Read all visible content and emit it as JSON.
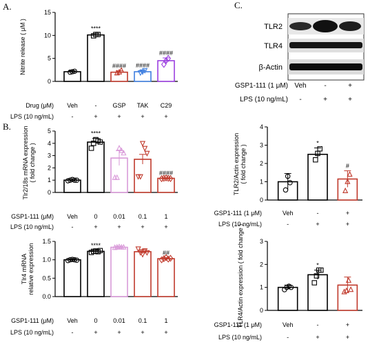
{
  "panels": [
    {
      "letter": "A."
    },
    {
      "letter": "B."
    },
    {
      "letter": "C."
    }
  ],
  "blot": {
    "bands": [
      "TLR2",
      "TLR4",
      "β-Actin"
    ],
    "rows": [
      {
        "label": "GSP1-111 (1 μM)",
        "marks": [
          "Veh",
          "-",
          "+"
        ]
      },
      {
        "label": "LPS (10 ng/mL)",
        "marks": [
          "-",
          "+",
          "+"
        ]
      }
    ]
  },
  "chart_data": [
    {
      "id": "A",
      "type": "bar",
      "ylabel": "Nitrite release ( μM )",
      "ylim": [
        0,
        15
      ],
      "yticks": [
        0,
        5,
        10,
        15
      ],
      "categories": [
        "Veh",
        "-",
        "GSP",
        "TAK",
        "C29"
      ],
      "values": [
        2.1,
        10.1,
        2.0,
        2.1,
        4.5
      ],
      "errors": [
        0.2,
        0.3,
        0.3,
        0.3,
        0.6
      ],
      "points": [
        [
          2.0,
          2.1,
          2.2
        ],
        [
          9.9,
          10.2,
          10.2
        ],
        [
          1.8,
          2.0,
          2.4
        ],
        [
          1.9,
          2.1,
          2.4
        ],
        [
          3.7,
          4.5,
          5.0
        ]
      ],
      "colors": [
        "#000000",
        "#000000",
        "#c0392b",
        "#3f7fe0",
        "#9b3fe0"
      ],
      "markers": [
        "circle",
        "square",
        "triangle",
        "triangle-down",
        "diamond"
      ],
      "annotations": [
        "",
        "****",
        "####",
        "####",
        "####"
      ],
      "row_labels": [
        "Drug (μM)",
        "LPS (10 ng/mL)"
      ],
      "row_marks": [
        [
          "Veh",
          "-",
          "GSP",
          "TAK",
          "C29"
        ],
        [
          "-",
          "+",
          "+",
          "+",
          "+"
        ]
      ]
    },
    {
      "id": "B1",
      "type": "bar",
      "ylabel": [
        "Tlr2/18s mRNA expression",
        "( fold change )"
      ],
      "ylim": [
        0,
        5
      ],
      "yticks": [
        0,
        1,
        2,
        3,
        4,
        5
      ],
      "categories": [
        "Veh",
        "0",
        "0.01",
        "0.1",
        "1"
      ],
      "values": [
        1.0,
        4.1,
        2.8,
        2.7,
        1.15
      ],
      "errors": [
        0.05,
        0.3,
        0.6,
        0.4,
        0.04
      ],
      "points": [
        [
          0.95,
          1.0,
          1.05,
          1.0,
          1.0
        ],
        [
          3.6,
          4.0,
          4.3,
          4.2,
          4.1
        ],
        [
          1.2,
          1.2,
          3.6,
          3.4,
          3.2
        ],
        [
          1.3,
          1.3,
          4.0,
          3.6,
          3.2
        ],
        [
          1.12,
          1.15,
          1.18,
          1.15,
          1.13
        ]
      ],
      "colors": [
        "#000000",
        "#000000",
        "#d99ad9",
        "#c0392b",
        "#c0392b"
      ],
      "markers": [
        "circle",
        "square",
        "triangle",
        "triangle-down",
        "diamond"
      ],
      "annotations": [
        "",
        "****",
        "",
        "",
        "####"
      ],
      "row_labels": [
        "GSP1-111 (μM)",
        "LPS (10 ng/mL)"
      ],
      "row_marks": [
        [
          "Veh",
          "0",
          "0.01",
          "0.1",
          "1"
        ],
        [
          "-",
          "+",
          "+",
          "+",
          "+"
        ]
      ]
    },
    {
      "id": "B2",
      "type": "bar",
      "ylabel": [
        "Tlr4 mRNA",
        "relative expression"
      ],
      "ylim": [
        0,
        1.5
      ],
      "yticks": [
        0.0,
        0.5,
        1.0,
        1.5
      ],
      "categories": [
        "Veh",
        "0",
        "0.01",
        "0.1",
        "1"
      ],
      "values": [
        1.0,
        1.23,
        1.34,
        1.22,
        1.03
      ],
      "errors": [
        0.02,
        0.03,
        0.02,
        0.06,
        0.03
      ],
      "points": [
        [
          0.98,
          1.0,
          1.01,
          1.0,
          0.99
        ],
        [
          1.2,
          1.23,
          1.24,
          1.22,
          1.25
        ],
        [
          1.33,
          1.34,
          1.35,
          1.34,
          1.34
        ],
        [
          1.3,
          1.2,
          1.15,
          1.25,
          1.2
        ],
        [
          1.0,
          1.03,
          1.06,
          1.02,
          1.04
        ]
      ],
      "colors": [
        "#000000",
        "#000000",
        "#d99ad9",
        "#c0392b",
        "#c0392b"
      ],
      "markers": [
        "circle",
        "square",
        "triangle",
        "triangle-down",
        "diamond"
      ],
      "annotations": [
        "",
        "****",
        "",
        "",
        "##"
      ],
      "row_labels": [
        "GSP1-111 (μM)",
        "LPS (10 ng/mL)"
      ],
      "row_marks": [
        [
          "Veh",
          "0",
          "0.01",
          "0.1",
          "1"
        ],
        [
          "-",
          "+",
          "+",
          "+",
          "+"
        ]
      ]
    },
    {
      "id": "C1",
      "type": "bar",
      "ylabel": [
        "TLR2/Actin expression",
        "( fold change )"
      ],
      "ylim": [
        0,
        4
      ],
      "yticks": [
        0,
        1,
        2,
        3,
        4
      ],
      "categories": [
        "Veh",
        "-",
        "+"
      ],
      "values": [
        1.0,
        2.5,
        1.15
      ],
      "errors": [
        0.45,
        0.35,
        0.45
      ],
      "points": [
        [
          0.55,
          1.3,
          0.95
        ],
        [
          2.2,
          2.55,
          2.8
        ],
        [
          0.5,
          1.0,
          1.4
        ]
      ],
      "colors": [
        "#000000",
        "#000000",
        "#c0392b"
      ],
      "markers": [
        "circle",
        "square",
        "triangle"
      ],
      "annotations": [
        "",
        "*",
        "#"
      ],
      "row_labels": [
        "GSP1-111 (1 μM)",
        "LPS (10 ng/mL)"
      ],
      "row_marks": [
        [
          "Veh",
          "-",
          "+"
        ],
        [
          "-",
          "+",
          "+"
        ]
      ]
    },
    {
      "id": "C2",
      "type": "bar",
      "ylabel": "TLR4/Actin expression ( fold change )",
      "ylim": [
        0,
        3
      ],
      "yticks": [
        0,
        1,
        2,
        3
      ],
      "categories": [
        "Veh",
        "-",
        "+"
      ],
      "values": [
        1.0,
        1.55,
        1.1
      ],
      "errors": [
        0.1,
        0.2,
        0.35
      ],
      "points": [
        [
          0.9,
          1.0,
          1.05,
          1.0
        ],
        [
          1.2,
          1.5,
          1.75,
          1.75
        ],
        [
          0.8,
          0.85,
          1.3,
          0.9
        ]
      ],
      "colors": [
        "#000000",
        "#000000",
        "#c0392b"
      ],
      "markers": [
        "circle",
        "square",
        "triangle"
      ],
      "annotations": [
        "",
        "*",
        ""
      ],
      "row_labels": [
        "GSP1-111 (1 μM)",
        "LPS (10 ng/mL)"
      ],
      "row_marks": [
        [
          "Veh",
          "-",
          "+"
        ],
        [
          "-",
          "+",
          "+"
        ]
      ]
    }
  ]
}
